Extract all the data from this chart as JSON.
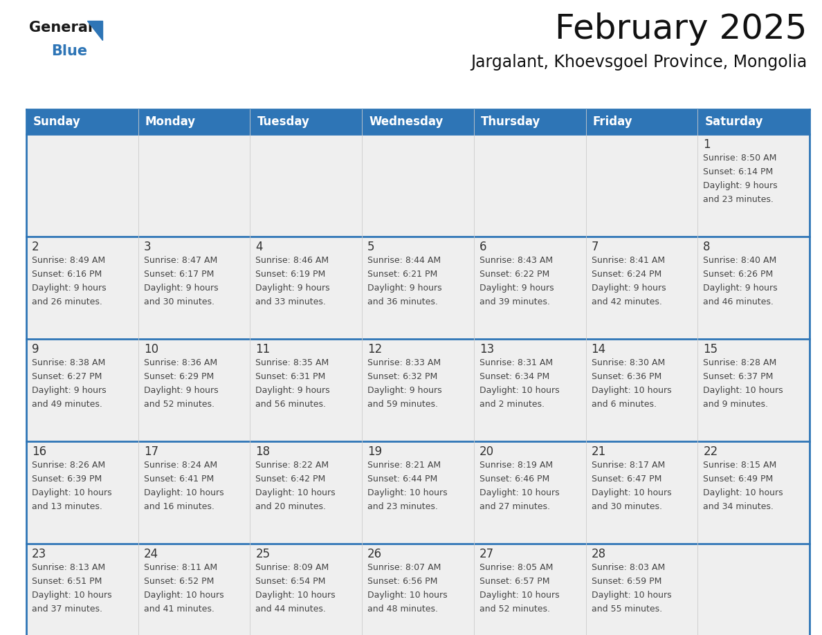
{
  "title": "February 2025",
  "subtitle": "Jargalant, Khoevsgoel Province, Mongolia",
  "days_of_week": [
    "Sunday",
    "Monday",
    "Tuesday",
    "Wednesday",
    "Thursday",
    "Friday",
    "Saturday"
  ],
  "header_bg": "#2E75B6",
  "header_text": "#FFFFFF",
  "cell_bg_light": "#EFEFEF",
  "cell_bg_white": "#FFFFFF",
  "line_color": "#2E75B6",
  "text_color": "#444444",
  "day_num_color": "#333333",
  "calendar_data": [
    [
      null,
      null,
      null,
      null,
      null,
      null,
      {
        "day": 1,
        "sunrise": "8:50 AM",
        "sunset": "6:14 PM",
        "daylight": "9 hours\nand 23 minutes."
      }
    ],
    [
      {
        "day": 2,
        "sunrise": "8:49 AM",
        "sunset": "6:16 PM",
        "daylight": "9 hours\nand 26 minutes."
      },
      {
        "day": 3,
        "sunrise": "8:47 AM",
        "sunset": "6:17 PM",
        "daylight": "9 hours\nand 30 minutes."
      },
      {
        "day": 4,
        "sunrise": "8:46 AM",
        "sunset": "6:19 PM",
        "daylight": "9 hours\nand 33 minutes."
      },
      {
        "day": 5,
        "sunrise": "8:44 AM",
        "sunset": "6:21 PM",
        "daylight": "9 hours\nand 36 minutes."
      },
      {
        "day": 6,
        "sunrise": "8:43 AM",
        "sunset": "6:22 PM",
        "daylight": "9 hours\nand 39 minutes."
      },
      {
        "day": 7,
        "sunrise": "8:41 AM",
        "sunset": "6:24 PM",
        "daylight": "9 hours\nand 42 minutes."
      },
      {
        "day": 8,
        "sunrise": "8:40 AM",
        "sunset": "6:26 PM",
        "daylight": "9 hours\nand 46 minutes."
      }
    ],
    [
      {
        "day": 9,
        "sunrise": "8:38 AM",
        "sunset": "6:27 PM",
        "daylight": "9 hours\nand 49 minutes."
      },
      {
        "day": 10,
        "sunrise": "8:36 AM",
        "sunset": "6:29 PM",
        "daylight": "9 hours\nand 52 minutes."
      },
      {
        "day": 11,
        "sunrise": "8:35 AM",
        "sunset": "6:31 PM",
        "daylight": "9 hours\nand 56 minutes."
      },
      {
        "day": 12,
        "sunrise": "8:33 AM",
        "sunset": "6:32 PM",
        "daylight": "9 hours\nand 59 minutes."
      },
      {
        "day": 13,
        "sunrise": "8:31 AM",
        "sunset": "6:34 PM",
        "daylight": "10 hours\nand 2 minutes."
      },
      {
        "day": 14,
        "sunrise": "8:30 AM",
        "sunset": "6:36 PM",
        "daylight": "10 hours\nand 6 minutes."
      },
      {
        "day": 15,
        "sunrise": "8:28 AM",
        "sunset": "6:37 PM",
        "daylight": "10 hours\nand 9 minutes."
      }
    ],
    [
      {
        "day": 16,
        "sunrise": "8:26 AM",
        "sunset": "6:39 PM",
        "daylight": "10 hours\nand 13 minutes."
      },
      {
        "day": 17,
        "sunrise": "8:24 AM",
        "sunset": "6:41 PM",
        "daylight": "10 hours\nand 16 minutes."
      },
      {
        "day": 18,
        "sunrise": "8:22 AM",
        "sunset": "6:42 PM",
        "daylight": "10 hours\nand 20 minutes."
      },
      {
        "day": 19,
        "sunrise": "8:21 AM",
        "sunset": "6:44 PM",
        "daylight": "10 hours\nand 23 minutes."
      },
      {
        "day": 20,
        "sunrise": "8:19 AM",
        "sunset": "6:46 PM",
        "daylight": "10 hours\nand 27 minutes."
      },
      {
        "day": 21,
        "sunrise": "8:17 AM",
        "sunset": "6:47 PM",
        "daylight": "10 hours\nand 30 minutes."
      },
      {
        "day": 22,
        "sunrise": "8:15 AM",
        "sunset": "6:49 PM",
        "daylight": "10 hours\nand 34 minutes."
      }
    ],
    [
      {
        "day": 23,
        "sunrise": "8:13 AM",
        "sunset": "6:51 PM",
        "daylight": "10 hours\nand 37 minutes."
      },
      {
        "day": 24,
        "sunrise": "8:11 AM",
        "sunset": "6:52 PM",
        "daylight": "10 hours\nand 41 minutes."
      },
      {
        "day": 25,
        "sunrise": "8:09 AM",
        "sunset": "6:54 PM",
        "daylight": "10 hours\nand 44 minutes."
      },
      {
        "day": 26,
        "sunrise": "8:07 AM",
        "sunset": "6:56 PM",
        "daylight": "10 hours\nand 48 minutes."
      },
      {
        "day": 27,
        "sunrise": "8:05 AM",
        "sunset": "6:57 PM",
        "daylight": "10 hours\nand 52 minutes."
      },
      {
        "day": 28,
        "sunrise": "8:03 AM",
        "sunset": "6:59 PM",
        "daylight": "10 hours\nand 55 minutes."
      },
      null
    ]
  ],
  "logo_text_general": "General",
  "logo_text_blue": "Blue",
  "logo_triangle_color": "#2E75B6",
  "title_fontsize": 36,
  "subtitle_fontsize": 17,
  "header_fontsize": 12,
  "day_num_fontsize": 12,
  "cell_fontsize": 9
}
